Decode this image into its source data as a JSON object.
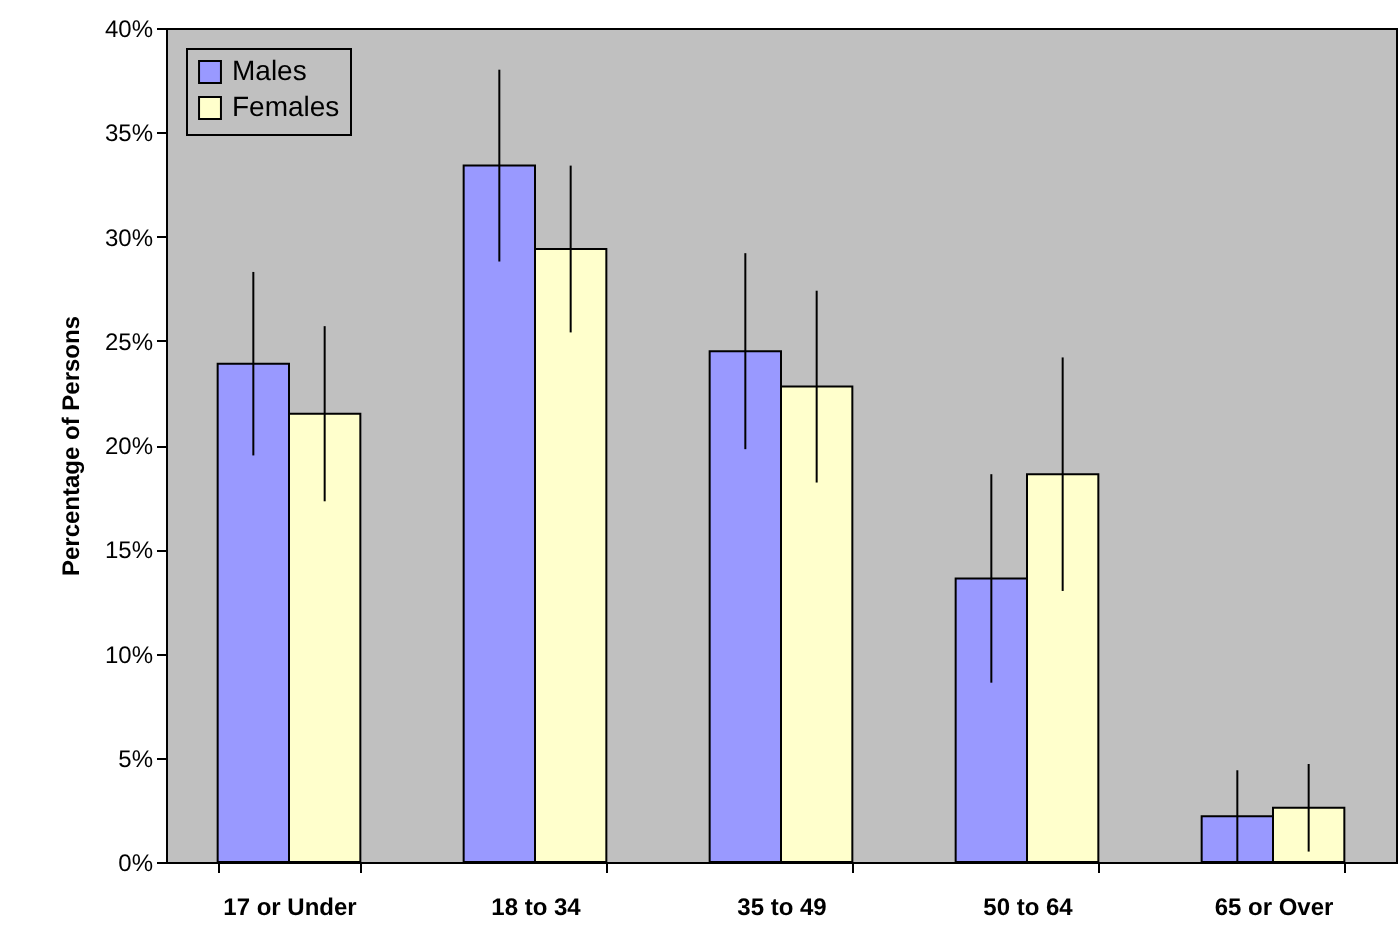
{
  "chart_data": {
    "type": "bar",
    "ylabel": "Percentage of Persons",
    "categories": [
      "17 or Under",
      "18 to 34",
      "35 to 49",
      "50 to 64",
      "65 or Over"
    ],
    "series": [
      {
        "name": "Males",
        "color": "#9999ff",
        "values": [
          23.9,
          33.4,
          24.5,
          13.6,
          2.2
        ],
        "errors": [
          4.4,
          4.6,
          4.7,
          5.0,
          2.2
        ]
      },
      {
        "name": "Females",
        "color": "#ffffcc",
        "values": [
          21.5,
          29.4,
          22.8,
          18.6,
          2.6
        ],
        "errors": [
          4.2,
          4.0,
          4.6,
          5.6,
          2.1
        ]
      }
    ],
    "ylim": [
      0,
      40
    ],
    "yticks": [
      {
        "value": 0,
        "label": "0%"
      },
      {
        "value": 5,
        "label": "5%"
      },
      {
        "value": 10,
        "label": "10%"
      },
      {
        "value": 15,
        "label": "15%"
      },
      {
        "value": 20,
        "label": "20%"
      },
      {
        "value": 25,
        "label": "25%"
      },
      {
        "value": 30,
        "label": "30%"
      },
      {
        "value": 35,
        "label": "35%"
      },
      {
        "value": 40,
        "label": "40%"
      }
    ],
    "grid": false,
    "legend": "top left"
  }
}
